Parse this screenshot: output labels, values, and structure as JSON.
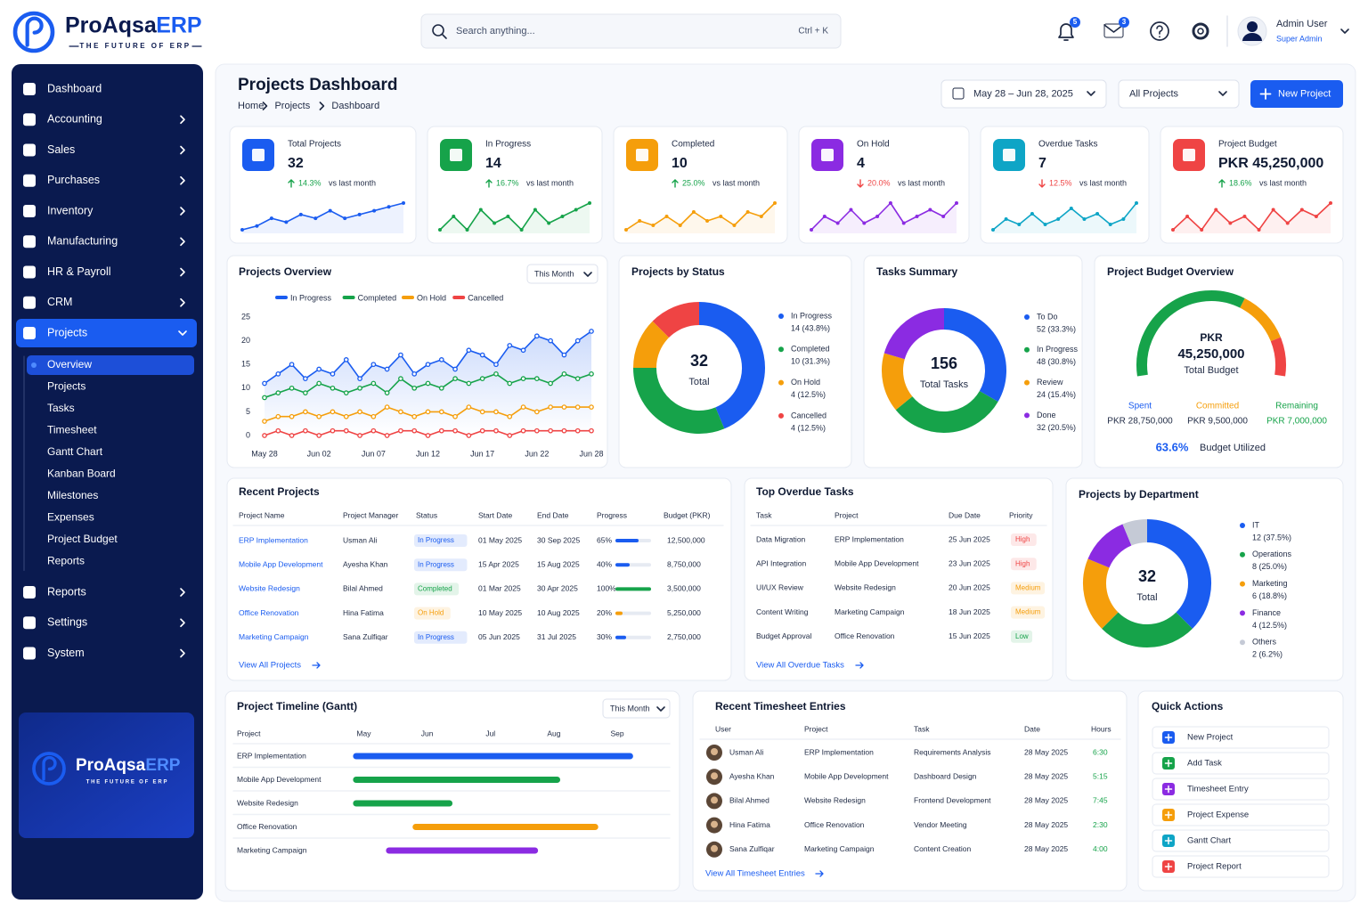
{
  "brand": {
    "name": "ProAqsa",
    "suffix": "ERP",
    "tagline": "THE FUTURE OF ERP"
  },
  "search": {
    "placeholder": "Search anything...",
    "shortcut": "Ctrl + K"
  },
  "header": {
    "notifications": "5",
    "messages": "3",
    "user": "Admin User",
    "role": "Super Admin"
  },
  "menu": [
    {
      "label": "Dashboard"
    },
    {
      "label": "Accounting"
    },
    {
      "label": "Sales"
    },
    {
      "label": "Purchases"
    },
    {
      "label": "Inventory"
    },
    {
      "label": "Manufacturing"
    },
    {
      "label": "HR & Payroll"
    },
    {
      "label": "CRM"
    },
    {
      "label": "Projects",
      "children": [
        "Overview",
        "Projects",
        "Tasks",
        "Timesheet",
        "Gantt Chart",
        "Kanban Board",
        "Milestones",
        "Expenses",
        "Project Budget",
        "Reports"
      ]
    },
    {
      "label": "Reports"
    },
    {
      "label": "Settings"
    },
    {
      "label": "System"
    }
  ],
  "page": {
    "title": "Projects Dashboard",
    "breadcrumb": [
      "Home",
      "Projects",
      "Dashboard"
    ],
    "date_range": "May 28 – Jun 28, 2025",
    "filter": "All Projects",
    "new_button": "New Project"
  },
  "kpis": [
    {
      "label": "Total Projects",
      "value": "32",
      "change": "14.3%",
      "direction": "up",
      "compare": "vs last month",
      "color": "#1a5cf0",
      "trend": [
        3,
        4,
        6,
        5,
        7,
        6,
        8,
        6,
        7,
        8,
        9,
        10
      ]
    },
    {
      "label": "In Progress",
      "value": "14",
      "change": "16.7%",
      "direction": "up",
      "compare": "vs last month",
      "color": "#16a34a",
      "trend": [
        5,
        7,
        5,
        8,
        6,
        7,
        5,
        8,
        6,
        7,
        8,
        9
      ]
    },
    {
      "label": "Completed",
      "value": "10",
      "change": "25.0%",
      "direction": "up",
      "compare": "vs last month",
      "color": "#f59e0b",
      "trend": [
        4,
        6,
        5,
        7,
        5,
        8,
        6,
        7,
        5,
        8,
        7,
        10
      ]
    },
    {
      "label": "On Hold",
      "value": "4",
      "change": "20.0%",
      "direction": "down",
      "compare": "vs last month",
      "color": "#8b2be2",
      "trend": [
        5,
        7,
        6,
        8,
        6,
        7,
        9,
        6,
        7,
        8,
        7,
        9
      ]
    },
    {
      "label": "Overdue Tasks",
      "value": "7",
      "change": "12.5%",
      "direction": "down",
      "compare": "vs last month",
      "color": "#0ea5c6",
      "trend": [
        4,
        6,
        5,
        7,
        5,
        6,
        8,
        6,
        7,
        5,
        6,
        9
      ]
    },
    {
      "label": "Project Budget",
      "value": "PKR 45,250,000",
      "change": "18.6%",
      "direction": "up",
      "compare": "vs last month",
      "color": "#ef4444",
      "trend": [
        5,
        7,
        5,
        8,
        6,
        7,
        5,
        8,
        6,
        8,
        7,
        9
      ]
    }
  ],
  "chart_data": [
    {
      "type": "line",
      "title": "Projects Overview",
      "period": "This Month",
      "grid": false,
      "categories": [
        "May 28",
        null,
        null,
        null,
        "Jun 02",
        null,
        null,
        null,
        "Jun 07",
        null,
        null,
        null,
        "Jun 12",
        null,
        null,
        null,
        "Jun 17",
        null,
        null,
        null,
        "Jun 22",
        null,
        null,
        null,
        "Jun 28"
      ],
      "series": [
        {
          "name": "In Progress",
          "color": "#1a5cf0",
          "values": [
            11,
            13,
            15,
            12,
            14,
            13,
            16,
            12,
            15,
            14,
            17,
            13,
            15,
            16,
            14,
            18,
            17,
            15,
            19,
            18,
            21,
            20,
            17,
            20,
            22
          ]
        },
        {
          "name": "Completed",
          "color": "#16a34a",
          "values": [
            8,
            9,
            10,
            9,
            11,
            10,
            9,
            10,
            11,
            9,
            12,
            10,
            11,
            10,
            12,
            11,
            12,
            13,
            11,
            12,
            12,
            11,
            13,
            12,
            13
          ]
        },
        {
          "name": "On Hold",
          "color": "#f59e0b",
          "values": [
            3,
            4,
            4,
            5,
            4,
            5,
            4,
            5,
            4,
            6,
            5,
            4,
            5,
            5,
            4,
            6,
            5,
            5,
            4,
            6,
            5,
            6,
            6,
            6,
            6
          ]
        },
        {
          "name": "Cancelled",
          "color": "#ef4444",
          "values": [
            0,
            1,
            0,
            1,
            0,
            1,
            1,
            0,
            1,
            0,
            1,
            1,
            0,
            1,
            1,
            0,
            1,
            1,
            0,
            1,
            1,
            1,
            1,
            1,
            1
          ]
        }
      ],
      "ylim": [
        0,
        25
      ],
      "yticks": [
        0,
        5,
        10,
        15,
        20,
        25
      ]
    },
    {
      "type": "donut",
      "title": "Projects by Status",
      "total": "32",
      "total_label": "Total",
      "categories": [
        "In Progress",
        "Completed",
        "On Hold",
        "Cancelled"
      ],
      "values": [
        14,
        10,
        4,
        4
      ],
      "value_labels": [
        "14 (43.8%)",
        "10 (31.3%)",
        "4 (12.5%)",
        "4 (12.5%)"
      ],
      "colors": [
        "#1a5cf0",
        "#16a34a",
        "#f59e0b",
        "#ef4444"
      ]
    },
    {
      "type": "donut",
      "title": "Tasks Summary",
      "total": "156",
      "total_label": "Total Tasks",
      "categories": [
        "To Do",
        "In Progress",
        "Review",
        "Done"
      ],
      "values": [
        52,
        48,
        24,
        32
      ],
      "value_labels": [
        "52 (33.3%)",
        "48 (30.8%)",
        "24 (15.4%)",
        "32 (20.5%)"
      ],
      "colors": [
        "#1a5cf0",
        "#16a34a",
        "#f59e0b",
        "#8b2be2"
      ]
    },
    {
      "type": "gauge",
      "title": "Project Budget Overview",
      "currency": "PKR",
      "total": "45,250,000",
      "total_label": "Total Budget",
      "categories": [
        "Spent",
        "Committed",
        "Remaining"
      ],
      "values": [
        28750000,
        9500000,
        7000000
      ],
      "value_labels": [
        "PKR 28,750,000",
        "PKR 9,500,000",
        "PKR 7,000,000"
      ],
      "colors": [
        "#16a34a",
        "#f59e0b",
        "#ef4444"
      ],
      "label_colors": [
        "#1a5cf0",
        "#f59e0b",
        "#16a34a"
      ],
      "utilized": "63.6%",
      "utilized_label": "Budget Utilized"
    },
    {
      "type": "gantt",
      "title": "Project Timeline (Gantt)",
      "period": "This Month",
      "column": "Project",
      "categories": [
        "ERP Implementation",
        "Mobile App Development",
        "Website Redesign",
        "Office Renovation",
        "Marketing Campaign"
      ],
      "start": [
        4.83,
        4.83,
        4.83,
        5.77,
        5.35
      ],
      "end": [
        9.25,
        8.1,
        6.4,
        8.7,
        7.75
      ],
      "colors": [
        "#1a5cf0",
        "#16a34a",
        "#16a34a",
        "#f59e0b",
        "#8b2be2"
      ],
      "xlim": [
        4.6,
        9.8
      ],
      "xticks": [
        {
          "value": 5,
          "label": "May"
        },
        {
          "value": 6,
          "label": "Jun"
        },
        {
          "value": 7,
          "label": "Jul"
        },
        {
          "value": 8,
          "label": "Aug"
        },
        {
          "value": 9,
          "label": "Sep"
        }
      ]
    },
    {
      "type": "donut",
      "title": "Projects by Department",
      "total": "32",
      "total_label": "Total",
      "categories": [
        "IT",
        "Operations",
        "Marketing",
        "Finance",
        "Others"
      ],
      "values": [
        12,
        8,
        6,
        4,
        2
      ],
      "value_labels": [
        "12 (37.5%)",
        "8 (25.0%)",
        "6 (18.8%)",
        "4 (12.5%)",
        "2 (6.2%)"
      ],
      "colors": [
        "#1a5cf0",
        "#16a34a",
        "#f59e0b",
        "#8b2be2",
        "#c5cad6"
      ]
    }
  ],
  "recent_projects": {
    "title": "Recent Projects",
    "columns": [
      "Project Name",
      "Project Manager",
      "Status",
      "Start Date",
      "End Date",
      "Progress",
      "Budget (PKR)"
    ],
    "progress_range": [
      0,
      100
    ],
    "rows": [
      {
        "name": "ERP Implementation",
        "manager": "Usman Ali",
        "status": "In Progress",
        "status_color": "#1a5cf0",
        "start": "01 May 2025",
        "end": "30 Sep 2025",
        "progress": 65,
        "progress_label": "65%",
        "budget": "12,500,000"
      },
      {
        "name": "Mobile App Development",
        "manager": "Ayesha Khan",
        "status": "In Progress",
        "status_color": "#1a5cf0",
        "start": "15 Apr 2025",
        "end": "15 Aug 2025",
        "progress": 40,
        "progress_label": "40%",
        "budget": "8,750,000"
      },
      {
        "name": "Website Redesign",
        "manager": "Bilal Ahmed",
        "status": "Completed",
        "status_color": "#16a34a",
        "start": "01 Mar 2025",
        "end": "30 Apr 2025",
        "progress": 100,
        "progress_label": "100%",
        "budget": "3,500,000"
      },
      {
        "name": "Office Renovation",
        "manager": "Hina Fatima",
        "status": "On Hold",
        "status_color": "#f59e0b",
        "start": "10 May 2025",
        "end": "10 Aug 2025",
        "progress": 20,
        "progress_label": "20%",
        "budget": "5,250,000"
      },
      {
        "name": "Marketing Campaign",
        "manager": "Sana Zulfiqar",
        "status": "In Progress",
        "status_color": "#1a5cf0",
        "start": "05 Jun 2025",
        "end": "31 Jul 2025",
        "progress": 30,
        "progress_label": "30%",
        "budget": "2,750,000"
      }
    ],
    "link": "View All Projects"
  },
  "overdue": {
    "title": "Top Overdue Tasks",
    "columns": [
      "Task",
      "Project",
      "Due Date",
      "Priority"
    ],
    "rows": [
      {
        "task": "Data Migration",
        "project": "ERP Implementation",
        "due": "25 Jun 2025",
        "priority": "High",
        "priority_color": "#ef4444"
      },
      {
        "task": "API Integration",
        "project": "Mobile App Development",
        "due": "23 Jun 2025",
        "priority": "High",
        "priority_color": "#ef4444"
      },
      {
        "task": "UI/UX Review",
        "project": "Website Redesign",
        "due": "20 Jun 2025",
        "priority": "Medium",
        "priority_color": "#f59e0b"
      },
      {
        "task": "Content Writing",
        "project": "Marketing Campaign",
        "due": "18 Jun 2025",
        "priority": "Medium",
        "priority_color": "#f59e0b"
      },
      {
        "task": "Budget Approval",
        "project": "Office Renovation",
        "due": "15 Jun 2025",
        "priority": "Low",
        "priority_color": "#16a34a"
      }
    ],
    "link": "View All Overdue Tasks"
  },
  "timesheet": {
    "title": "Recent Timesheet Entries",
    "columns": [
      "User",
      "Project",
      "Task",
      "Date",
      "Hours"
    ],
    "rows": [
      {
        "user": "Usman Ali",
        "project": "ERP Implementation",
        "task": "Requirements Analysis",
        "date": "28 May 2025",
        "hours": "6:30"
      },
      {
        "user": "Ayesha Khan",
        "project": "Mobile App Development",
        "task": "Dashboard Design",
        "date": "28 May 2025",
        "hours": "5:15"
      },
      {
        "user": "Bilal Ahmed",
        "project": "Website Redesign",
        "task": "Frontend Development",
        "date": "28 May 2025",
        "hours": "7:45"
      },
      {
        "user": "Hina Fatima",
        "project": "Office Renovation",
        "task": "Vendor Meeting",
        "date": "28 May 2025",
        "hours": "2:30"
      },
      {
        "user": "Sana Zulfiqar",
        "project": "Marketing Campaign",
        "task": "Content Creation",
        "date": "28 May 2025",
        "hours": "4:00"
      }
    ],
    "link": "View All Timesheet Entries"
  },
  "quick_actions": {
    "title": "Quick Actions",
    "items": [
      {
        "label": "New Project",
        "color": "#1a5cf0"
      },
      {
        "label": "Add Task",
        "color": "#16a34a"
      },
      {
        "label": "Timesheet Entry",
        "color": "#8b2be2"
      },
      {
        "label": "Project Expense",
        "color": "#f59e0b"
      },
      {
        "label": "Gantt Chart",
        "color": "#0ea5c6"
      },
      {
        "label": "Project Report",
        "color": "#ef4444"
      }
    ]
  }
}
